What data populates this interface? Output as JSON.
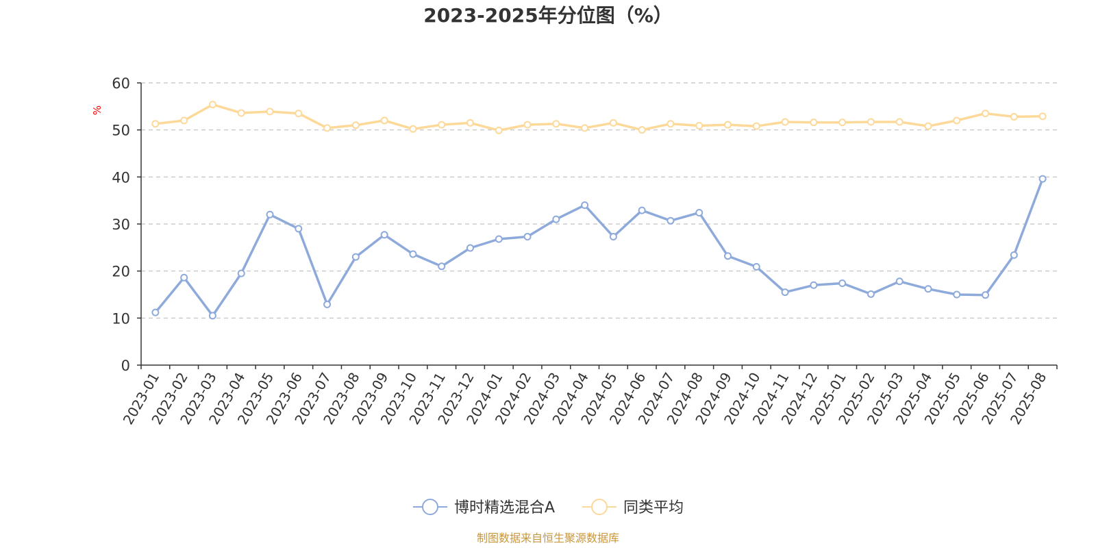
{
  "chart_data": {
    "type": "line",
    "title": "2023-2025年分位图（%）",
    "ylabel": "%",
    "ylim": [
      0,
      60
    ],
    "yticks": [
      0,
      10,
      20,
      30,
      40,
      50,
      60
    ],
    "grid": true,
    "legend_position": "bottom-center",
    "categories": [
      "2023-01",
      "2023-02",
      "2023-03",
      "2023-04",
      "2023-05",
      "2023-06",
      "2023-07",
      "2023-08",
      "2023-09",
      "2023-10",
      "2023-11",
      "2023-12",
      "2024-01",
      "2024-02",
      "2024-03",
      "2024-04",
      "2024-05",
      "2024-06",
      "2024-07",
      "2024-08",
      "2024-09",
      "2024-10",
      "2024-11",
      "2024-12",
      "2025-01",
      "2025-02",
      "2025-03",
      "2025-04",
      "2025-05",
      "2025-06",
      "2025-07",
      "2025-08"
    ],
    "series": [
      {
        "name": "博时精选混合A",
        "color": "#8eaadb",
        "values": [
          11.2,
          18.6,
          10.5,
          19.5,
          32.0,
          29.0,
          12.9,
          23.0,
          27.7,
          23.6,
          21.0,
          24.9,
          26.8,
          27.3,
          31.0,
          34.0,
          27.3,
          32.9,
          30.7,
          32.4,
          23.2,
          20.9,
          15.5,
          17.0,
          17.4,
          15.1,
          17.8,
          16.2,
          15.0,
          14.9,
          23.4,
          39.6
        ]
      },
      {
        "name": "同类平均",
        "color": "#fdd999",
        "values": [
          51.3,
          52.0,
          55.4,
          53.6,
          53.9,
          53.5,
          50.4,
          51.0,
          52.0,
          50.2,
          51.1,
          51.5,
          49.9,
          51.1,
          51.3,
          50.4,
          51.5,
          50.0,
          51.3,
          50.9,
          51.1,
          50.8,
          51.7,
          51.6,
          51.6,
          51.7,
          51.7,
          50.8,
          52.0,
          53.5,
          52.8,
          52.9
        ]
      }
    ]
  },
  "source_note": "制图数据来自恒生聚源数据库"
}
